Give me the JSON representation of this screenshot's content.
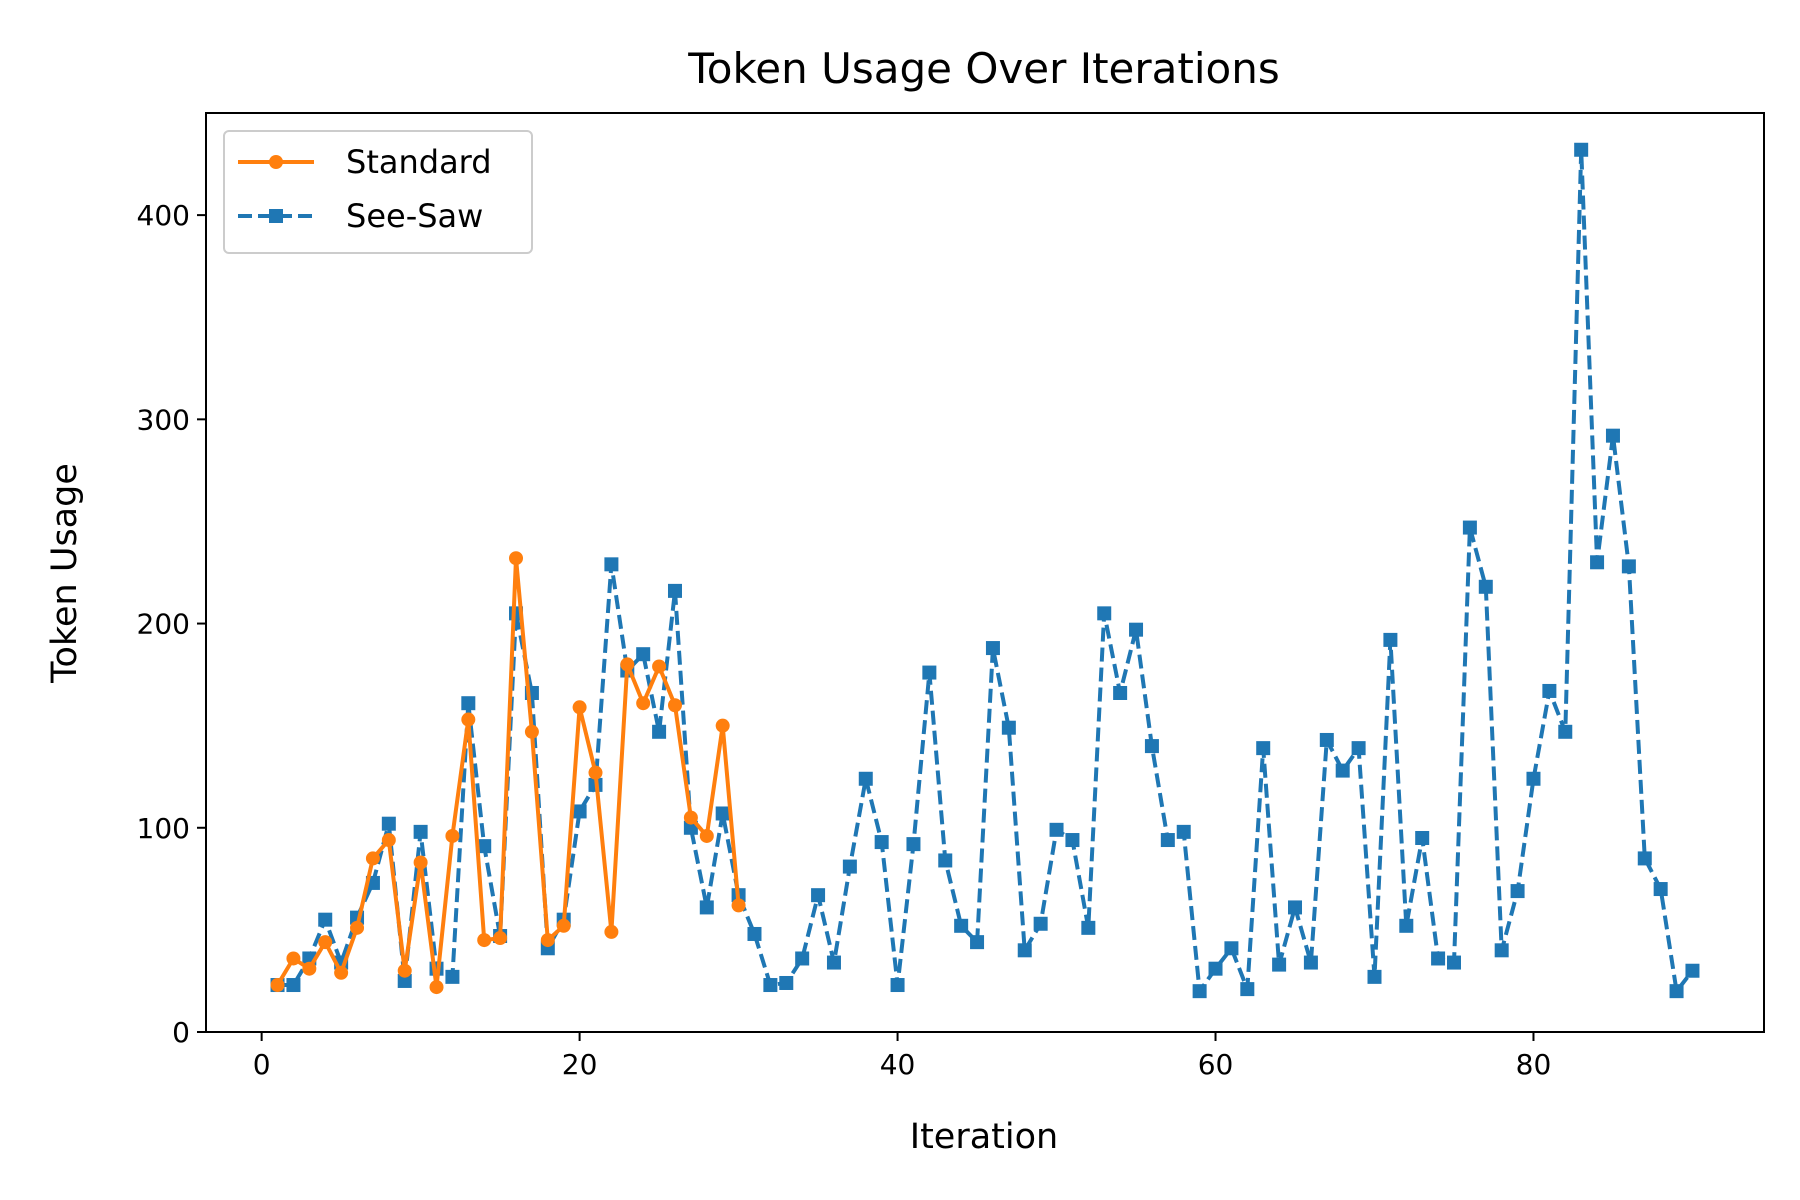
{
  "chart_data": {
    "type": "line",
    "title": "Token Usage Over Iterations",
    "xlabel": "Iteration",
    "ylabel": "Token Usage",
    "xlim": [
      -3.5,
      94.5
    ],
    "ylim": [
      0,
      450
    ],
    "xticks": [
      0,
      20,
      40,
      60,
      80
    ],
    "yticks": [
      0,
      100,
      200,
      300,
      400
    ],
    "grid": false,
    "legend_position": "upper left",
    "series": [
      {
        "name": "Standard",
        "color": "#ff7f0e",
        "line_style": "solid",
        "marker": "circle",
        "x": [
          1,
          2,
          3,
          4,
          5,
          6,
          7,
          8,
          9,
          10,
          11,
          12,
          13,
          14,
          15,
          16,
          17,
          18,
          19,
          20,
          21,
          22,
          23,
          24,
          25,
          26,
          27,
          28,
          29,
          30
        ],
        "y": [
          23,
          36,
          31,
          44,
          29,
          51,
          85,
          94,
          30,
          83,
          22,
          96,
          153,
          45,
          46,
          232,
          147,
          45,
          52,
          159,
          127,
          49,
          180,
          161,
          179,
          160,
          105,
          96,
          150,
          62
        ]
      },
      {
        "name": "See-Saw",
        "color": "#1f77b4",
        "line_style": "dashed",
        "marker": "square",
        "x": [
          1,
          2,
          3,
          4,
          5,
          6,
          7,
          8,
          9,
          10,
          11,
          12,
          13,
          14,
          15,
          16,
          17,
          18,
          19,
          20,
          21,
          22,
          23,
          24,
          25,
          26,
          27,
          28,
          29,
          30,
          31,
          32,
          33,
          34,
          35,
          36,
          37,
          38,
          39,
          40,
          41,
          42,
          43,
          44,
          45,
          46,
          47,
          48,
          49,
          50,
          51,
          52,
          53,
          54,
          55,
          56,
          57,
          58,
          59,
          60,
          61,
          62,
          63,
          64,
          65,
          66,
          67,
          68,
          69,
          70,
          71,
          72,
          73,
          74,
          75,
          76,
          77,
          78,
          79,
          80,
          81,
          82,
          83,
          84,
          85,
          86,
          87,
          88,
          89,
          90
        ],
        "y": [
          23,
          23,
          36,
          55,
          34,
          56,
          73,
          102,
          25,
          98,
          31,
          27,
          161,
          91,
          47,
          205,
          166,
          41,
          55,
          108,
          121,
          229,
          177,
          185,
          147,
          216,
          100,
          61,
          107,
          67,
          48,
          23,
          24,
          36,
          67,
          34,
          81,
          124,
          93,
          23,
          92,
          176,
          84,
          52,
          44,
          188,
          149,
          40,
          53,
          99,
          94,
          51,
          205,
          166,
          197,
          140,
          94,
          98,
          20,
          31,
          41,
          21,
          139,
          33,
          61,
          34,
          143,
          128,
          139,
          27,
          192,
          52,
          95,
          36,
          34,
          247,
          218,
          40,
          69,
          124,
          167,
          147,
          432,
          230,
          292,
          228,
          85,
          70,
          20,
          30
        ]
      }
    ]
  }
}
